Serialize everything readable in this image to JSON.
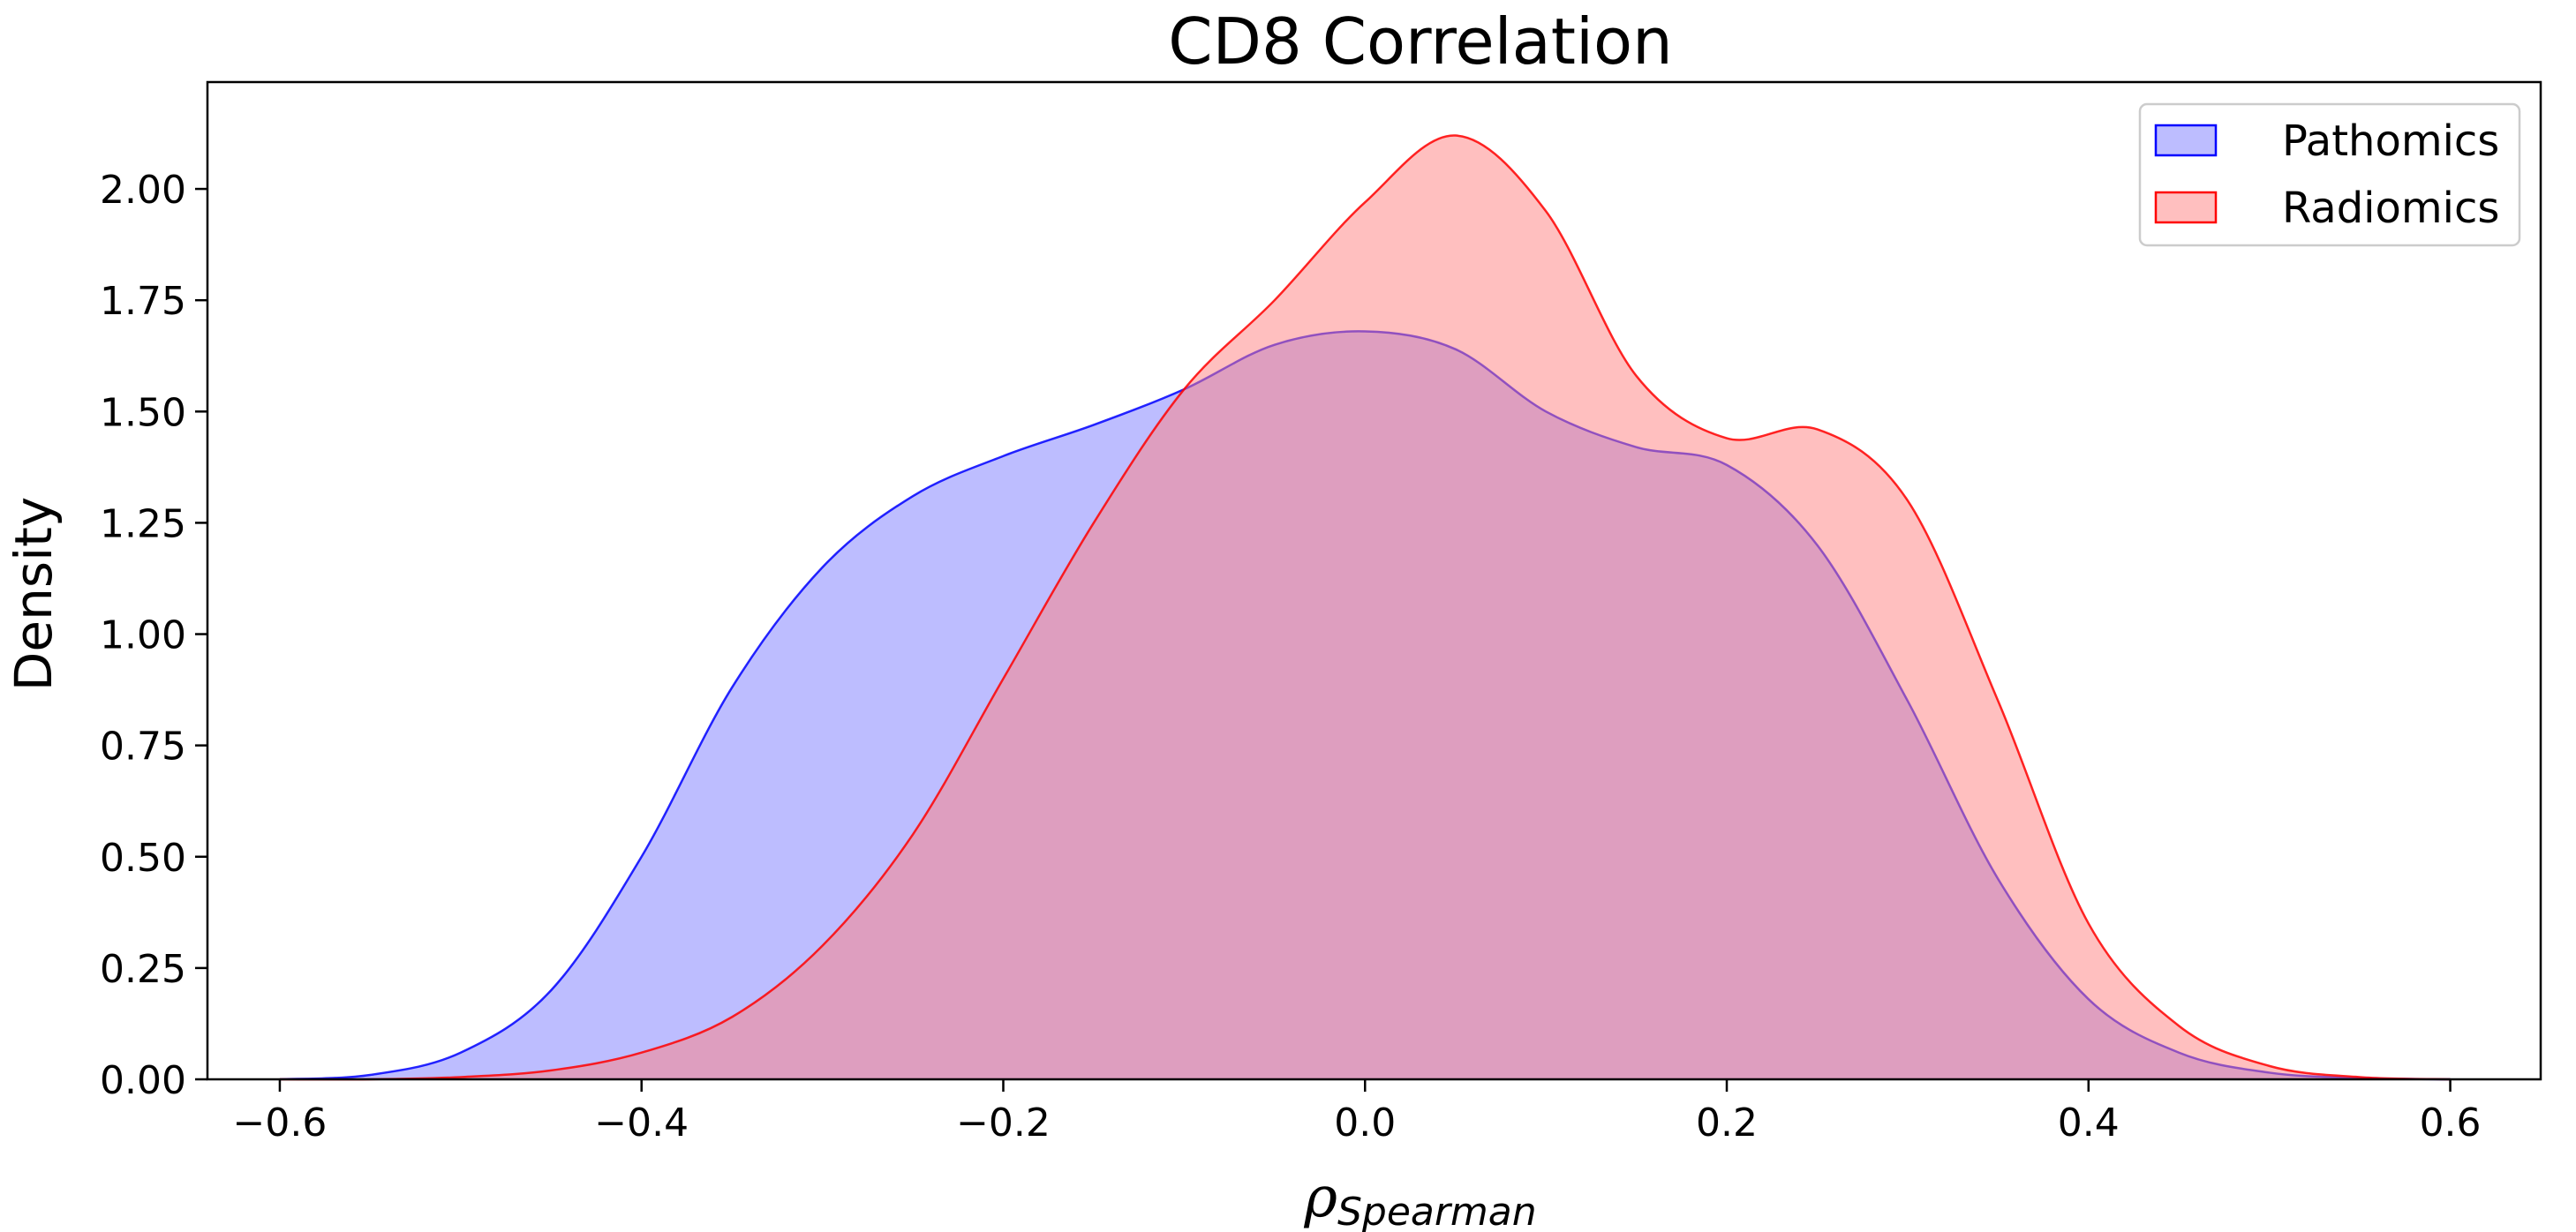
{
  "chart_data": {
    "type": "area",
    "title": "CD8 Correlation",
    "xlabel": "ρ",
    "xlabel_subscript": "Spearman",
    "ylabel": "Density",
    "xlim": [
      -0.64,
      0.65
    ],
    "ylim": [
      0,
      2.24
    ],
    "x_ticks": [
      -0.6,
      -0.4,
      -0.2,
      0.0,
      0.2,
      0.4,
      0.6
    ],
    "x_tick_labels": [
      "−0.6",
      "−0.4",
      "−0.2",
      "0.0",
      "0.2",
      "0.4",
      "0.6"
    ],
    "y_ticks": [
      0.0,
      0.25,
      0.5,
      0.75,
      1.0,
      1.25,
      1.5,
      1.75,
      2.0
    ],
    "y_tick_labels": [
      "0.00",
      "0.25",
      "0.50",
      "0.75",
      "1.00",
      "1.25",
      "1.50",
      "1.75",
      "2.00"
    ],
    "grid": false,
    "legend_position": "top-right",
    "series": [
      {
        "name": "Pathomics",
        "color": "#0000ff",
        "fill": "#7b7bff",
        "x": [
          -0.6,
          -0.55,
          -0.5,
          -0.45,
          -0.4,
          -0.35,
          -0.3,
          -0.25,
          -0.2,
          -0.15,
          -0.1,
          -0.05,
          0.0,
          0.05,
          0.1,
          0.15,
          0.2,
          0.25,
          0.3,
          0.35,
          0.4,
          0.45,
          0.5,
          0.55,
          0.6
        ],
        "values": [
          0.0,
          0.01,
          0.06,
          0.2,
          0.5,
          0.88,
          1.15,
          1.31,
          1.4,
          1.47,
          1.55,
          1.65,
          1.68,
          1.64,
          1.5,
          1.42,
          1.38,
          1.2,
          0.85,
          0.45,
          0.18,
          0.06,
          0.015,
          0.003,
          0.0
        ]
      },
      {
        "name": "Radiomics",
        "color": "#ff0000",
        "fill": "#ff8080",
        "x": [
          -0.6,
          -0.55,
          -0.5,
          -0.45,
          -0.4,
          -0.35,
          -0.3,
          -0.25,
          -0.2,
          -0.15,
          -0.1,
          -0.05,
          0.0,
          0.05,
          0.1,
          0.15,
          0.2,
          0.25,
          0.3,
          0.35,
          0.4,
          0.45,
          0.5,
          0.55,
          0.6
        ],
        "values": [
          0.0,
          0.0,
          0.005,
          0.02,
          0.06,
          0.14,
          0.3,
          0.55,
          0.9,
          1.25,
          1.55,
          1.75,
          1.97,
          2.12,
          1.95,
          1.58,
          1.44,
          1.46,
          1.3,
          0.85,
          0.35,
          0.12,
          0.03,
          0.005,
          0.0
        ]
      }
    ]
  }
}
